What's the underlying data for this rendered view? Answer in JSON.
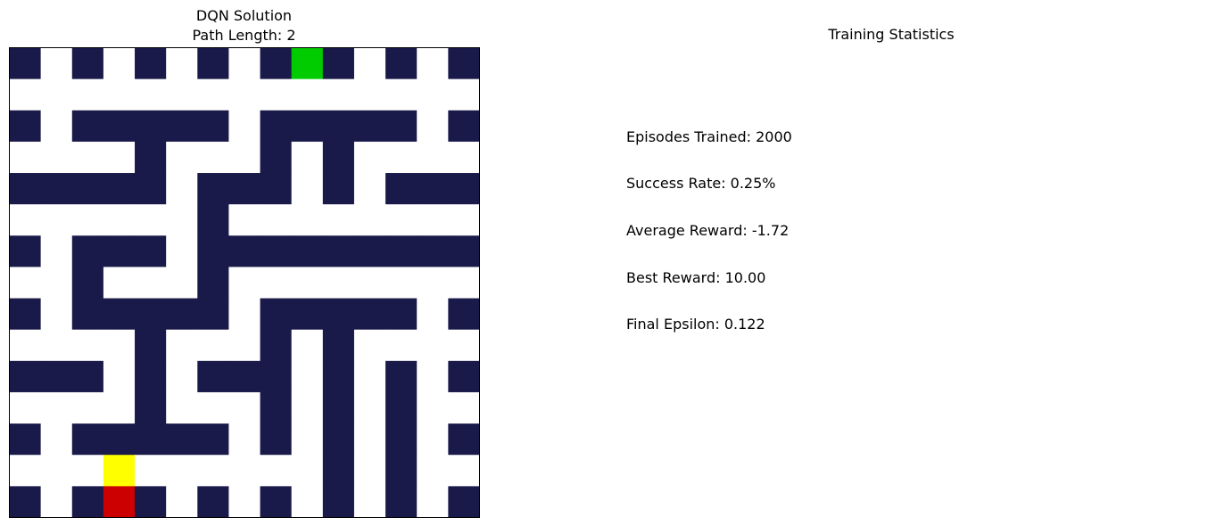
{
  "maze_panel": {
    "title": "DQN Solution",
    "subtitle": "Path Length: 2"
  },
  "stats_panel": {
    "title": "Training Statistics",
    "lines": [
      "Episodes Trained: 2000",
      "Success Rate: 0.25%",
      "Average Reward: -1.72",
      "Best Reward: 10.00",
      "Final Epsilon: 0.122"
    ]
  },
  "chart_data": {
    "type": "heatmap",
    "title": "DQN Solution",
    "subtitle": "Path Length: 2",
    "grid_rows": 15,
    "grid_cols": 15,
    "legend": {
      "#": "wall",
      ".": "open",
      "G": "goal",
      "Y": "path",
      "S": "start"
    },
    "colors": {
      "wall": "#1a1a4a",
      "open": "#ffffff",
      "goal": "#00cc00",
      "path": "#ffff00",
      "start": "#cc0000",
      "border": "#000000"
    },
    "grid": [
      "#.#.#.#.#G#.#.#",
      "...............",
      "#.#####.#####.#",
      "....#...#.#....",
      "#####.###.#.###",
      "......#........",
      "#.###.#########",
      "..#...#........",
      "#.#####.#####.#",
      "....#...#.#....",
      "###.#.###.#.#.#",
      "....#...#.#.#..",
      "#.#####.#.#.#.#",
      "...Y......#.#..",
      "#.#S#.#.#.#.#.#"
    ]
  }
}
